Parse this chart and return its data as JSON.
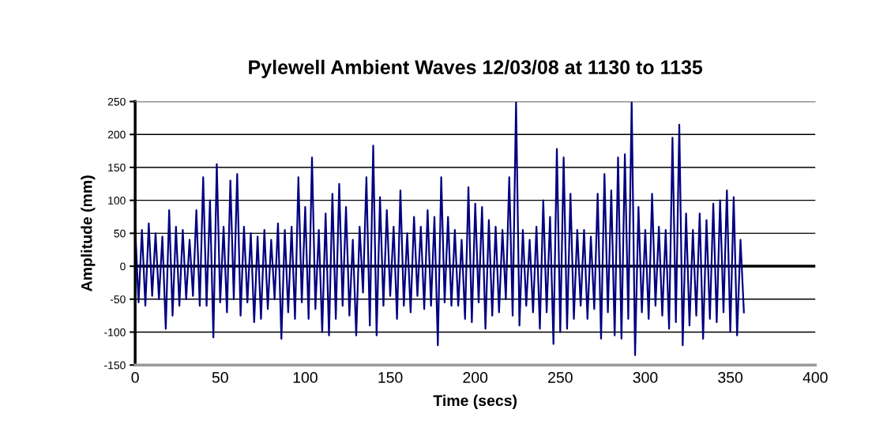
{
  "chart_data": {
    "type": "line",
    "title": "Pylewell Ambient Waves 12/03/08 at 1130 to 1135",
    "xlabel": "Time (secs)",
    "ylabel": "Amplitude (mm)",
    "xlim": [
      0,
      400
    ],
    "xticks": [
      0,
      50,
      100,
      150,
      200,
      250,
      300,
      350,
      400
    ],
    "ylim": [
      -150,
      250
    ],
    "yticks": [
      -150,
      -100,
      -50,
      0,
      50,
      100,
      150,
      200,
      250
    ],
    "grid": "y",
    "marker": "none",
    "line_style": "solid",
    "series": [
      {
        "color": "#000080",
        "x": [
          0,
          2,
          4,
          6,
          8,
          10,
          12,
          14,
          16,
          18,
          20,
          22,
          24,
          26,
          28,
          30,
          32,
          34,
          36,
          38,
          40,
          42,
          44,
          46,
          48,
          50,
          52,
          54,
          56,
          58,
          60,
          62,
          64,
          66,
          68,
          70,
          72,
          74,
          76,
          78,
          80,
          82,
          84,
          86,
          88,
          90,
          92,
          94,
          96,
          98,
          100,
          102,
          104,
          106,
          108,
          110,
          112,
          114,
          116,
          118,
          120,
          122,
          124,
          126,
          128,
          130,
          132,
          134,
          136,
          138,
          140,
          142,
          144,
          146,
          148,
          150,
          152,
          154,
          156,
          158,
          160,
          162,
          164,
          166,
          168,
          170,
          172,
          174,
          176,
          178,
          180,
          182,
          184,
          186,
          188,
          190,
          192,
          194,
          196,
          198,
          200,
          202,
          204,
          206,
          208,
          210,
          212,
          214,
          216,
          218,
          220,
          222,
          224,
          226,
          228,
          230,
          232,
          234,
          236,
          238,
          240,
          242,
          244,
          246,
          248,
          250,
          252,
          254,
          256,
          258,
          260,
          262,
          264,
          266,
          268,
          270,
          272,
          274,
          276,
          278,
          280,
          282,
          284,
          286,
          288,
          290,
          292,
          294,
          296,
          298,
          300,
          302,
          304,
          306,
          308,
          310,
          312,
          314,
          316,
          318,
          320,
          322,
          324,
          326,
          328,
          330,
          332,
          334,
          336,
          338,
          340,
          342,
          344,
          346,
          348,
          350,
          352,
          354,
          356,
          358
        ],
        "values": [
          60,
          -55,
          55,
          -60,
          65,
          -45,
          50,
          -50,
          45,
          -95,
          85,
          -75,
          60,
          -60,
          55,
          -50,
          40,
          -45,
          85,
          -60,
          135,
          -60,
          100,
          -108,
          155,
          -55,
          60,
          -70,
          130,
          -50,
          140,
          -75,
          60,
          -55,
          50,
          -85,
          45,
          -80,
          55,
          -65,
          40,
          -50,
          65,
          -110,
          55,
          -70,
          60,
          -80,
          135,
          -55,
          90,
          -80,
          165,
          -65,
          55,
          -100,
          80,
          -105,
          110,
          -80,
          125,
          -60,
          90,
          -75,
          40,
          -105,
          60,
          -40,
          135,
          -90,
          183,
          -105,
          105,
          -60,
          85,
          -45,
          60,
          -80,
          115,
          -60,
          50,
          -70,
          75,
          -45,
          60,
          -65,
          85,
          -60,
          75,
          -120,
          135,
          -55,
          75,
          -60,
          55,
          -60,
          40,
          -80,
          120,
          -85,
          95,
          -55,
          90,
          -95,
          70,
          -75,
          60,
          -70,
          55,
          -50,
          135,
          -75,
          250,
          -90,
          55,
          -60,
          40,
          -70,
          60,
          -95,
          100,
          -70,
          75,
          -118,
          178,
          -100,
          165,
          -95,
          110,
          -80,
          55,
          -60,
          55,
          -80,
          45,
          -65,
          110,
          -110,
          140,
          -70,
          115,
          -105,
          165,
          -110,
          170,
          -80,
          250,
          -135,
          90,
          -70,
          55,
          -80,
          110,
          -60,
          60,
          -75,
          55,
          -95,
          195,
          -85,
          215,
          -120,
          80,
          -90,
          55,
          -75,
          80,
          -110,
          70,
          -80,
          95,
          -85,
          100,
          -70,
          115,
          -100,
          105,
          -105,
          40,
          -70
        ]
      }
    ]
  }
}
